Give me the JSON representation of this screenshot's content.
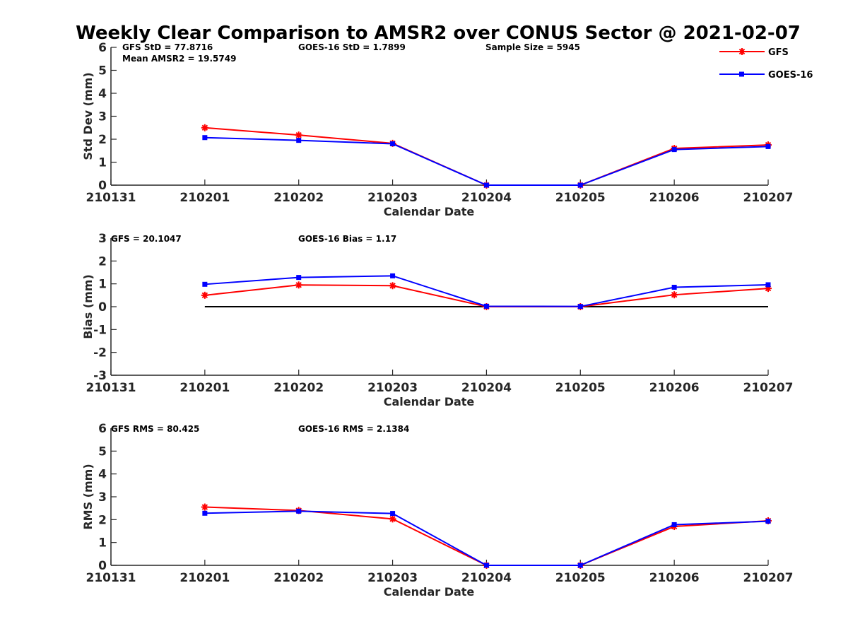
{
  "figure": {
    "title": "Weekly Clear Comparison to AMSR2 over CONUS Sector @ 2021-02-07",
    "legend": [
      {
        "name": "GFS",
        "color": "#ff0000",
        "marker": "asterisk"
      },
      {
        "name": "GOES-16",
        "color": "#0000ff",
        "marker": "square"
      }
    ],
    "stats": {
      "std_gfs": "GFS StD = 77.8716",
      "std_mean": "Mean AMSR2 = 19.5749",
      "std_goes": "GOES-16 StD = 1.7899",
      "std_sample": "Sample Size = 5945",
      "bias_gfs": "GFS = 20.1047",
      "bias_goes": "GOES-16 Bias  = 1.17",
      "rms_gfs": "GFS RMS = 80.425",
      "rms_goes": "GOES-16 RMS = 2.1384"
    }
  },
  "chart_data": [
    {
      "type": "line",
      "id": "std",
      "title": "Weekly Clear Comparison to AMSR2 over CONUS Sector @ 2021-02-07",
      "xlabel": "Calendar Date",
      "ylabel": "Std Dev (mm)",
      "categories": [
        "210131",
        "210201",
        "210202",
        "210203",
        "210204",
        "210205",
        "210206",
        "210207"
      ],
      "ylim": [
        0,
        6
      ],
      "yticks": [
        0,
        1,
        2,
        3,
        4,
        5,
        6
      ],
      "legend_position": "top-right",
      "grid": false,
      "series": [
        {
          "name": "GFS",
          "color": "#ff0000",
          "marker": "asterisk",
          "values": [
            null,
            2.5,
            2.18,
            1.82,
            0.0,
            0.0,
            1.6,
            1.75
          ]
        },
        {
          "name": "GOES-16",
          "color": "#0000ff",
          "marker": "square",
          "values": [
            null,
            2.07,
            1.95,
            1.8,
            0.0,
            0.0,
            1.55,
            1.68
          ]
        }
      ]
    },
    {
      "type": "line",
      "id": "bias",
      "xlabel": "Calendar Date",
      "ylabel": "Bias (mm)",
      "categories": [
        "210131",
        "210201",
        "210202",
        "210203",
        "210204",
        "210205",
        "210206",
        "210207"
      ],
      "ylim": [
        -3,
        3
      ],
      "yticks": [
        -3,
        -2,
        -1,
        0,
        1,
        2,
        3
      ],
      "grid": false,
      "zero_line": true,
      "series": [
        {
          "name": "GFS",
          "color": "#ff0000",
          "marker": "asterisk",
          "values": [
            null,
            0.5,
            0.95,
            0.92,
            0.0,
            0.0,
            0.52,
            0.8
          ]
        },
        {
          "name": "GOES-16",
          "color": "#0000ff",
          "marker": "square",
          "values": [
            null,
            0.98,
            1.28,
            1.35,
            0.02,
            0.01,
            0.85,
            0.96
          ]
        }
      ]
    },
    {
      "type": "line",
      "id": "rms",
      "xlabel": "Calendar Date",
      "ylabel": "RMS (mm)",
      "categories": [
        "210131",
        "210201",
        "210202",
        "210203",
        "210204",
        "210205",
        "210206",
        "210207"
      ],
      "ylim": [
        0,
        6
      ],
      "yticks": [
        0,
        1,
        2,
        3,
        4,
        5,
        6
      ],
      "grid": false,
      "series": [
        {
          "name": "GFS",
          "color": "#ff0000",
          "marker": "asterisk",
          "values": [
            null,
            2.55,
            2.4,
            2.03,
            0.0,
            0.0,
            1.7,
            1.95
          ]
        },
        {
          "name": "GOES-16",
          "color": "#0000ff",
          "marker": "square",
          "values": [
            null,
            2.28,
            2.37,
            2.27,
            0.0,
            0.0,
            1.78,
            1.93
          ]
        }
      ]
    }
  ]
}
